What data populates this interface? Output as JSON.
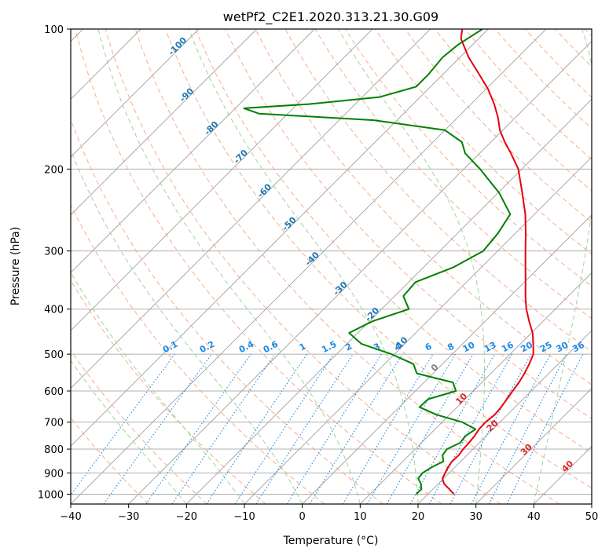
{
  "chart_data": {
    "type": "skew-t",
    "title": "wetPf2_C2E1.2020.313.21.30.G09",
    "xlabel": "Temperature (°C)",
    "ylabel": "Pressure (hPa)",
    "xlim": [
      -40,
      50
    ],
    "ylim": [
      1050,
      100
    ],
    "y_scale": "log",
    "x_ticks": [
      "−40",
      "−30",
      "−20",
      "−10",
      "0",
      "10",
      "20",
      "30",
      "40",
      "50"
    ],
    "y_ticks": [
      {
        "p": 100,
        "label": "100"
      },
      {
        "p": 200,
        "label": "200"
      },
      {
        "p": 300,
        "label": "300"
      },
      {
        "p": 400,
        "label": "400"
      },
      {
        "p": 500,
        "label": "500"
      },
      {
        "p": 600,
        "label": "600"
      },
      {
        "p": 700,
        "label": "700"
      },
      {
        "p": 800,
        "label": "800"
      },
      {
        "p": 900,
        "label": "900"
      },
      {
        "p": 1000,
        "label": "1000"
      }
    ],
    "grid": true,
    "series": [
      {
        "color": "#e8000b",
        "points": [
          [
            24.5,
            1000
          ],
          [
            22.8,
            975
          ],
          [
            21,
            950
          ],
          [
            19.8,
            925
          ],
          [
            19.3,
            900
          ],
          [
            18.8,
            875
          ],
          [
            18.5,
            850
          ],
          [
            18.6,
            825
          ],
          [
            18.3,
            800
          ],
          [
            18.2,
            775
          ],
          [
            18.0,
            750
          ],
          [
            17.6,
            725
          ],
          [
            17.5,
            700
          ],
          [
            17.8,
            675
          ],
          [
            17.6,
            650
          ],
          [
            17.2,
            625
          ],
          [
            16.8,
            600
          ],
          [
            16.4,
            575
          ],
          [
            15.8,
            550
          ],
          [
            15.0,
            525
          ],
          [
            14.0,
            500
          ],
          [
            12.2,
            475
          ],
          [
            10.2,
            450
          ],
          [
            7.6,
            425
          ],
          [
            5.0,
            400
          ],
          [
            2.6,
            375
          ],
          [
            0.2,
            350
          ],
          [
            -2.4,
            325
          ],
          [
            -5.2,
            300
          ],
          [
            -8.2,
            275
          ],
          [
            -11.6,
            250
          ],
          [
            -15.8,
            225
          ],
          [
            -20.6,
            200
          ],
          [
            -24.6,
            185
          ],
          [
            -27.6,
            175
          ],
          [
            -30.5,
            165
          ],
          [
            -33.0,
            155
          ],
          [
            -36.0,
            145
          ],
          [
            -39.5,
            135
          ],
          [
            -43.8,
            125
          ],
          [
            -48.5,
            115
          ],
          [
            -53.0,
            105
          ],
          [
            -54.5,
            100
          ]
        ]
      },
      {
        "color": "#008000",
        "points": [
          [
            18.0,
            1000
          ],
          [
            18.0,
            975
          ],
          [
            17.0,
            950
          ],
          [
            15.6,
            925
          ],
          [
            15.4,
            900
          ],
          [
            16.0,
            875
          ],
          [
            17.0,
            850
          ],
          [
            15.8,
            825
          ],
          [
            15.5,
            800
          ],
          [
            16.7,
            775
          ],
          [
            16.4,
            750
          ],
          [
            17.0,
            725
          ],
          [
            13.5,
            700
          ],
          [
            7.8,
            675
          ],
          [
            3.5,
            650
          ],
          [
            3.6,
            625
          ],
          [
            7.0,
            600
          ],
          [
            5.0,
            575
          ],
          [
            -2.8,
            550
          ],
          [
            -5.0,
            525
          ],
          [
            -10.5,
            500
          ],
          [
            -17.5,
            475
          ],
          [
            -21.5,
            450
          ],
          [
            -19.5,
            425
          ],
          [
            -15.3,
            400
          ],
          [
            -18.5,
            375
          ],
          [
            -18.8,
            350
          ],
          [
            -14.8,
            325
          ],
          [
            -12.5,
            300
          ],
          [
            -13.0,
            275
          ],
          [
            -14.2,
            250
          ],
          [
            -19.8,
            225
          ],
          [
            -27.2,
            200
          ],
          [
            -32.5,
            185
          ],
          [
            -35.0,
            175
          ],
          [
            -40.0,
            165
          ],
          [
            -54.0,
            157
          ],
          [
            -75.0,
            152
          ],
          [
            -78.5,
            148
          ],
          [
            -68.0,
            145
          ],
          [
            -57.0,
            140
          ],
          [
            -52.5,
            133
          ],
          [
            -52.5,
            125
          ],
          [
            -53.0,
            115
          ],
          [
            -52.5,
            108
          ],
          [
            -51.0,
            100
          ]
        ]
      }
    ],
    "isotherm_labels": [
      {
        "t": -100,
        "label": "-100",
        "p": 110
      },
      {
        "t": -90,
        "label": "-90",
        "p": 140
      },
      {
        "t": -80,
        "label": "-80",
        "p": 165
      },
      {
        "t": -70,
        "label": "-70",
        "p": 190
      },
      {
        "t": -60,
        "label": "-60",
        "p": 225
      },
      {
        "t": -50,
        "label": "-50",
        "p": 265
      },
      {
        "t": -40,
        "label": "-40",
        "p": 315
      },
      {
        "t": -30,
        "label": "-30",
        "p": 365
      },
      {
        "t": -20,
        "label": "-20",
        "p": 415
      },
      {
        "t": -10,
        "label": "-10",
        "p": 480
      }
    ],
    "wet_bulb_labels": [
      {
        "t": 0,
        "label": "0",
        "p": 540
      },
      {
        "t": 10,
        "label": "10",
        "p": 630
      },
      {
        "t": 20,
        "label": "20",
        "p": 720
      },
      {
        "t": 30,
        "label": "30",
        "p": 810
      },
      {
        "t": 40,
        "label": "40",
        "p": 880
      }
    ],
    "mixing_ratio_labels": [
      "0.1",
      "0.2",
      "0.4",
      "0.6",
      "1",
      "1.5",
      "2",
      "3",
      "4",
      "6",
      "8",
      "10",
      "13",
      "16",
      "20",
      "25",
      "30",
      "36"
    ],
    "colors": {
      "temperature": "#e8000b",
      "dewpoint": "#008000",
      "isotherm": "#a0a0a0",
      "isotherm_label": "#1f77b4",
      "dry_adiabat": "#f4a582",
      "moist_adiabat": "#9fd49f",
      "mixing_ratio": "#1e88e5",
      "wet_bulb_label": "#d62728",
      "zero_label": "#808080",
      "grid": "#b0b0b0"
    }
  }
}
